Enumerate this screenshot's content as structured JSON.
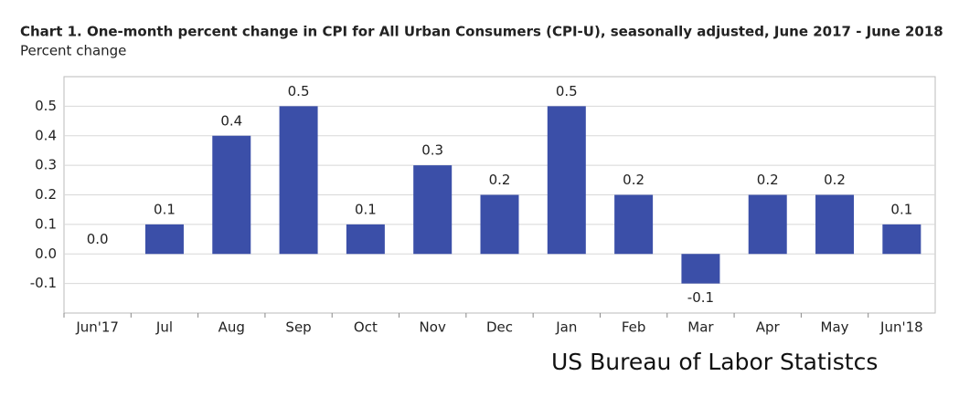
{
  "chart_data": {
    "type": "bar",
    "title": "Chart 1. One-month percent change in CPI for All Urban Consumers (CPI-U), seasonally adjusted, June 2017 - June 2018",
    "subtitle": "Percent change",
    "source": "US Bureau of Labor Statistcs",
    "categories": [
      "Jun'17",
      "Jul",
      "Aug",
      "Sep",
      "Oct",
      "Nov",
      "Dec",
      "Jan",
      "Feb",
      "Mar",
      "Apr",
      "May",
      "Jun'18"
    ],
    "values": [
      0,
      0.1,
      0.4,
      0.5,
      0.1,
      0.3,
      0.2,
      0.5,
      0.2,
      -0.1,
      0.2,
      0.2,
      0.1
    ],
    "value_labels": [
      "0.0",
      "0.1",
      "0.4",
      "0.5",
      "0.1",
      "0.3",
      "0.2",
      "0.5",
      "0.2",
      "-0.1",
      "0.2",
      "0.2",
      "0.1"
    ],
    "color": "#3b4fa8",
    "ylim": [
      -0.2,
      0.6
    ],
    "yticks": [
      -0.1,
      {
        "value": 0,
        "label": "0.0"
      },
      0.1,
      0.2,
      0.3,
      0.4,
      0.5
    ],
    "grid": true
  }
}
